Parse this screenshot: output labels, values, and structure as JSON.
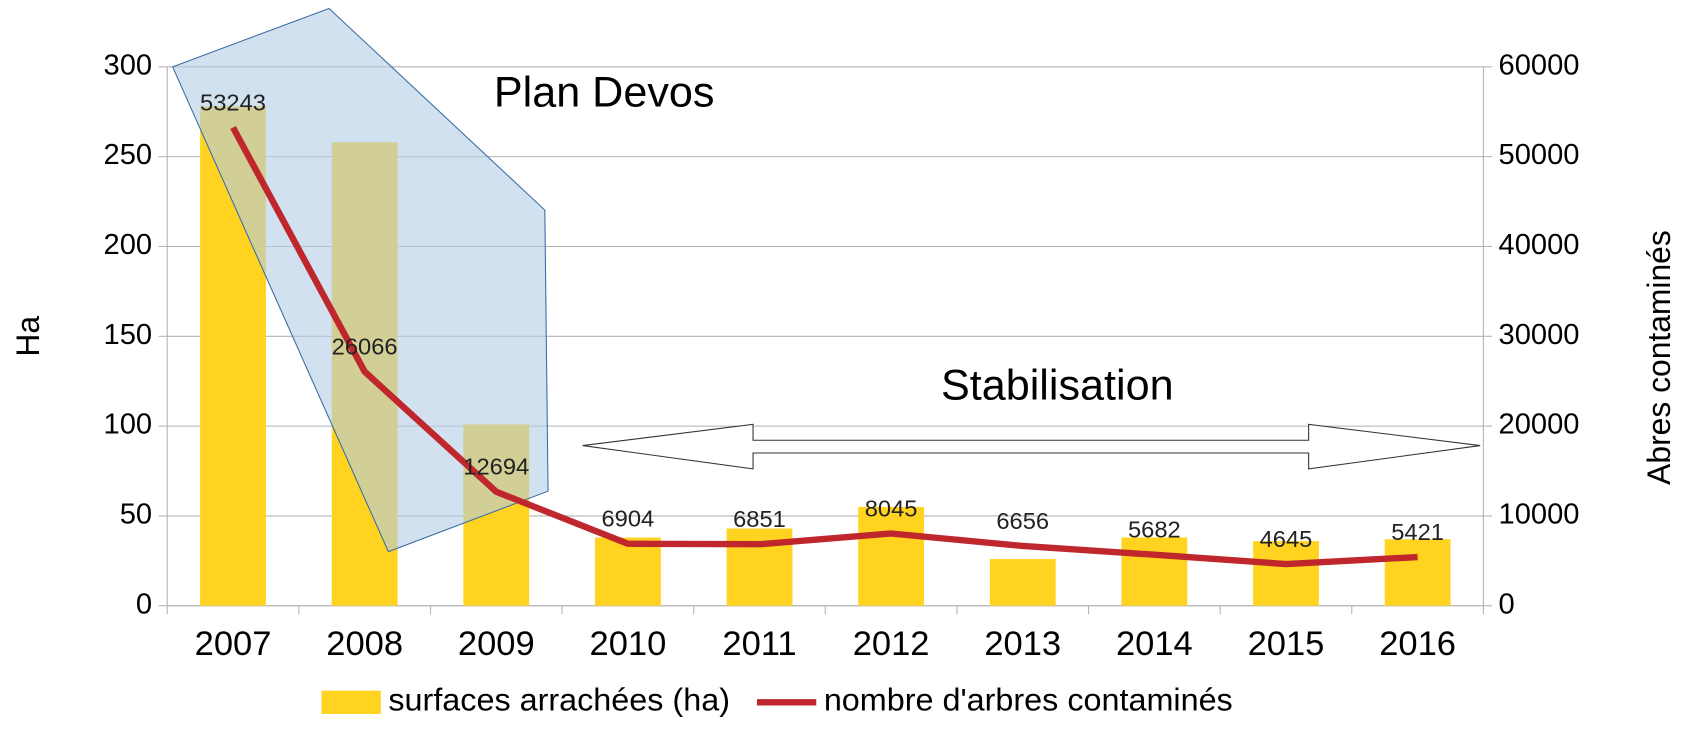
{
  "chart_data": {
    "type": "bar",
    "categories": [
      "2007",
      "2008",
      "2009",
      "2010",
      "2011",
      "2012",
      "2013",
      "2014",
      "2015",
      "2016"
    ],
    "series": [
      {
        "name": "surfaces arrachées (ha)",
        "color": "#ffd320",
        "values": [
          278,
          258,
          101,
          38,
          43,
          55,
          26,
          38,
          36,
          37
        ]
      },
      {
        "name": "nombre d'arbres contaminés",
        "color": "#c0272d",
        "type": "line",
        "axis": "y2",
        "values": [
          53243,
          26066,
          12694,
          6904,
          6851,
          8045,
          6656,
          5682,
          4645,
          5421
        ]
      }
    ],
    "ylabel": "Ha",
    "y2label": "Abres contaminés",
    "ylim": [
      0,
      300
    ],
    "yticks": [
      0,
      50,
      100,
      150,
      200,
      250,
      300
    ],
    "y2lim": [
      0,
      60000
    ],
    "y2ticks": [
      0,
      10000,
      20000,
      30000,
      40000,
      50000,
      60000
    ],
    "annotations": [
      "Plan Devos",
      "Stabilisation"
    ],
    "grid": true,
    "legend": "bottom"
  }
}
